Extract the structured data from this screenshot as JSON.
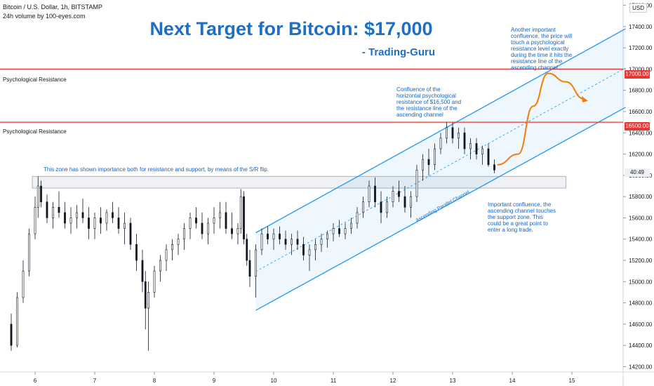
{
  "header": {
    "symbol_line": "Bitcoin / U.S. Dollar, 1h, BITSTAMP",
    "volume_line": "24h volume by 100-eyes.com"
  },
  "title": "Next Target for Bitcoin: $17,000",
  "subtitle": "- Trading-Guru",
  "currency_badge": "USD",
  "countdown_label": "40:49",
  "levels": [
    {
      "label": "Psychological Resistance",
      "price": 17000,
      "tag": "17000.00",
      "color": "#e53935"
    },
    {
      "label": "Psychological Resistance",
      "price": 16500,
      "tag": "16500.00",
      "color": "#e53935"
    }
  ],
  "annotations": {
    "zone_note": "This zone has shown importance both for resistance and support, by means of the S/R flip.",
    "confluence_16500": [
      "Confluence of the",
      "horizontal psychological",
      "resistance of $16,500 and",
      "the resistance line of the",
      "ascending channel"
    ],
    "confluence_17000": [
      "Another important",
      "confluence, the price will",
      "touch a psychological",
      "resistance level exactly",
      "during the time it hits the",
      "resistance line of the",
      "ascending channel"
    ],
    "support_note": [
      "Important confluence, the",
      "ascending channel touches",
      "the support zone. This",
      "could be a great point to",
      "enter a long trade."
    ],
    "channel_label": "Ascending Parallel Channel"
  },
  "chart_data": {
    "type": "candlestick",
    "x_axis": {
      "labels": [
        "6",
        "7",
        "8",
        "9",
        "10",
        "11",
        "12",
        "13",
        "14",
        "15"
      ],
      "unit": "day"
    },
    "y_axis": {
      "range": [
        14150,
        17650
      ],
      "ticks": [
        14200,
        14400,
        14600,
        14800,
        15000,
        15200,
        15400,
        15600,
        15800,
        16000,
        16200,
        16400,
        16600,
        16800,
        17000,
        17200,
        17400,
        17600
      ],
      "tick_labels": [
        "14200.00",
        "14400.00",
        "14600.00",
        "14800.00",
        "15000.00",
        "15200.00",
        "15400.00",
        "15600.00",
        "15800.00",
        "16000.00",
        "16200.00",
        "16400.00",
        "16600.00",
        "16800.00",
        "17000.00",
        "17200.00",
        "17400.00",
        "17600.00"
      ]
    },
    "horizontal_levels": [
      17000,
      16500
    ],
    "sr_zone": {
      "x_start": 6.0,
      "x_end": 14.9,
      "price_low": 15880,
      "price_high": 15990
    },
    "channel": {
      "lower": [
        [
          9.7,
          14730
        ],
        [
          15.9,
          16640
        ]
      ],
      "upper": [
        [
          9.7,
          15460
        ],
        [
          15.9,
          17380
        ]
      ]
    },
    "projection": [
      [
        13.75,
        16100
      ],
      [
        14.1,
        16200
      ],
      [
        14.35,
        16650
      ],
      [
        14.6,
        16960
      ],
      [
        14.9,
        16880
      ],
      [
        15.2,
        16720
      ]
    ],
    "candles": [
      [
        5.6,
        14600,
        14700,
        14350,
        14400
      ],
      [
        5.7,
        14400,
        14900,
        14380,
        14850
      ],
      [
        5.8,
        14850,
        15200,
        14800,
        15100
      ],
      [
        5.9,
        15100,
        15500,
        15050,
        15450
      ],
      [
        6.0,
        15450,
        15800,
        15400,
        15700
      ],
      [
        6.05,
        15700,
        15990,
        15600,
        15900
      ],
      [
        6.1,
        15900,
        15950,
        15700,
        15750
      ],
      [
        6.2,
        15750,
        15820,
        15550,
        15600
      ],
      [
        6.3,
        15600,
        15750,
        15500,
        15700
      ],
      [
        6.4,
        15700,
        15850,
        15600,
        15650
      ],
      [
        6.5,
        15650,
        15750,
        15500,
        15550
      ],
      [
        6.6,
        15550,
        15700,
        15450,
        15600
      ],
      [
        6.7,
        15600,
        15720,
        15500,
        15650
      ],
      [
        6.8,
        15650,
        15780,
        15550,
        15600
      ],
      [
        6.9,
        15600,
        15700,
        15400,
        15500
      ],
      [
        7.0,
        15500,
        15650,
        15400,
        15600
      ],
      [
        7.1,
        15600,
        15700,
        15450,
        15550
      ],
      [
        7.2,
        15550,
        15680,
        15480,
        15650
      ],
      [
        7.3,
        15650,
        15750,
        15550,
        15600
      ],
      [
        7.4,
        15600,
        15700,
        15450,
        15500
      ],
      [
        7.5,
        15500,
        15650,
        15350,
        15550
      ],
      [
        7.6,
        15550,
        15600,
        15300,
        15350
      ],
      [
        7.7,
        15350,
        15450,
        15100,
        15200
      ],
      [
        7.8,
        15200,
        15300,
        14900,
        15000
      ],
      [
        7.85,
        15000,
        15100,
        14550,
        14750
      ],
      [
        7.9,
        14750,
        15000,
        14350,
        14900
      ],
      [
        8.0,
        14900,
        15150,
        14850,
        15100
      ],
      [
        8.1,
        15100,
        15250,
        15000,
        15200
      ],
      [
        8.2,
        15200,
        15350,
        15100,
        15300
      ],
      [
        8.3,
        15300,
        15400,
        15200,
        15350
      ],
      [
        8.4,
        15350,
        15450,
        15250,
        15400
      ],
      [
        8.5,
        15400,
        15550,
        15300,
        15500
      ],
      [
        8.6,
        15500,
        15650,
        15400,
        15600
      ],
      [
        8.7,
        15600,
        15700,
        15500,
        15550
      ],
      [
        8.8,
        15550,
        15650,
        15400,
        15450
      ],
      [
        8.9,
        15450,
        15600,
        15350,
        15550
      ],
      [
        9.0,
        15550,
        15700,
        15450,
        15600
      ],
      [
        9.1,
        15600,
        15750,
        15500,
        15650
      ],
      [
        9.2,
        15650,
        15750,
        15450,
        15500
      ],
      [
        9.3,
        15500,
        15650,
        15400,
        15450
      ],
      [
        9.4,
        15450,
        15550,
        15350,
        15500
      ],
      [
        9.45,
        15500,
        15870,
        15450,
        15800
      ],
      [
        9.5,
        15800,
        15850,
        15350,
        15400
      ],
      [
        9.55,
        15400,
        15450,
        15150,
        15200
      ],
      [
        9.6,
        15200,
        15300,
        14950,
        15050
      ],
      [
        9.7,
        15050,
        15350,
        14850,
        15300
      ],
      [
        9.8,
        15300,
        15500,
        15250,
        15450
      ],
      [
        9.9,
        15450,
        15520,
        15350,
        15400
      ],
      [
        10.0,
        15400,
        15500,
        15300,
        15450
      ],
      [
        10.1,
        15450,
        15520,
        15350,
        15400
      ],
      [
        10.2,
        15400,
        15480,
        15300,
        15350
      ],
      [
        10.3,
        15350,
        15450,
        15250,
        15400
      ],
      [
        10.4,
        15400,
        15480,
        15300,
        15350
      ],
      [
        10.5,
        15350,
        15420,
        15200,
        15250
      ],
      [
        10.6,
        15250,
        15350,
        15100,
        15300
      ],
      [
        10.7,
        15300,
        15400,
        15200,
        15350
      ],
      [
        10.8,
        15350,
        15450,
        15280,
        15400
      ],
      [
        10.9,
        15400,
        15480,
        15320,
        15450
      ],
      [
        11.0,
        15450,
        15550,
        15380,
        15500
      ],
      [
        11.1,
        15500,
        15580,
        15420,
        15450
      ],
      [
        11.2,
        15450,
        15550,
        15400,
        15500
      ],
      [
        11.3,
        15500,
        15600,
        15450,
        15550
      ],
      [
        11.4,
        15550,
        15700,
        15500,
        15650
      ],
      [
        11.5,
        15650,
        15800,
        15600,
        15750
      ],
      [
        11.6,
        15750,
        15950,
        15700,
        15900
      ],
      [
        11.7,
        15900,
        15980,
        15700,
        15750
      ],
      [
        11.8,
        15750,
        15850,
        15550,
        15650
      ],
      [
        11.9,
        15650,
        15800,
        15600,
        15750
      ],
      [
        12.0,
        15750,
        15900,
        15700,
        15850
      ],
      [
        12.1,
        15850,
        15950,
        15750,
        15800
      ],
      [
        12.2,
        15800,
        15900,
        15650,
        15700
      ],
      [
        12.3,
        15700,
        15850,
        15600,
        15800
      ],
      [
        12.4,
        15800,
        16100,
        15750,
        16050
      ],
      [
        12.5,
        16050,
        16200,
        15950,
        16150
      ],
      [
        12.6,
        16150,
        16250,
        16000,
        16100
      ],
      [
        12.7,
        16100,
        16300,
        16050,
        16250
      ],
      [
        12.8,
        16250,
        16400,
        16200,
        16350
      ],
      [
        12.9,
        16350,
        16500,
        16300,
        16450
      ],
      [
        13.0,
        16450,
        16500,
        16300,
        16350
      ],
      [
        13.1,
        16350,
        16450,
        16250,
        16400
      ],
      [
        13.2,
        16400,
        16450,
        16200,
        16250
      ],
      [
        13.3,
        16250,
        16350,
        16150,
        16300
      ],
      [
        13.4,
        16300,
        16350,
        16150,
        16200
      ],
      [
        13.5,
        16200,
        16280,
        16100,
        16250
      ],
      [
        13.6,
        16250,
        16300,
        16080,
        16100
      ],
      [
        13.7,
        16100,
        16150,
        16020,
        16050
      ]
    ]
  }
}
